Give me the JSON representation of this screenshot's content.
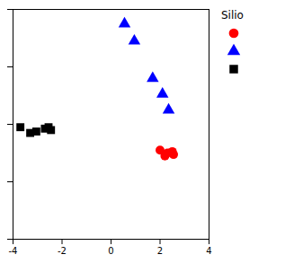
{
  "chart_data": {
    "type": "scatter",
    "legend_title": "Silio",
    "legend": "right",
    "xlim": [
      -4,
      4
    ],
    "ylim": [
      -4,
      4
    ],
    "xticks": [
      -4,
      -2,
      0,
      2,
      4
    ],
    "yticks": [
      -4,
      -2,
      0,
      2,
      4
    ],
    "tick_labels": "x",
    "grid": false,
    "series": [
      {
        "color": "red",
        "marker": "circle",
        "x": [
          2.0,
          2.3,
          2.5,
          2.2,
          2.55
        ],
        "values": [
          -0.9,
          -1.0,
          -0.95,
          -1.1,
          -1.05
        ]
      },
      {
        "color": "blue",
        "marker": "triangle",
        "x": [
          0.55,
          0.95,
          1.7,
          2.1,
          2.35
        ],
        "values": [
          3.5,
          2.9,
          1.6,
          1.05,
          0.5
        ]
      },
      {
        "color": "black",
        "marker": "square",
        "x": [
          -3.7,
          -3.3,
          -3.05,
          -2.7,
          -2.55,
          -2.45
        ],
        "values": [
          -0.1,
          -0.3,
          -0.25,
          -0.15,
          -0.1,
          -0.2
        ]
      }
    ]
  }
}
